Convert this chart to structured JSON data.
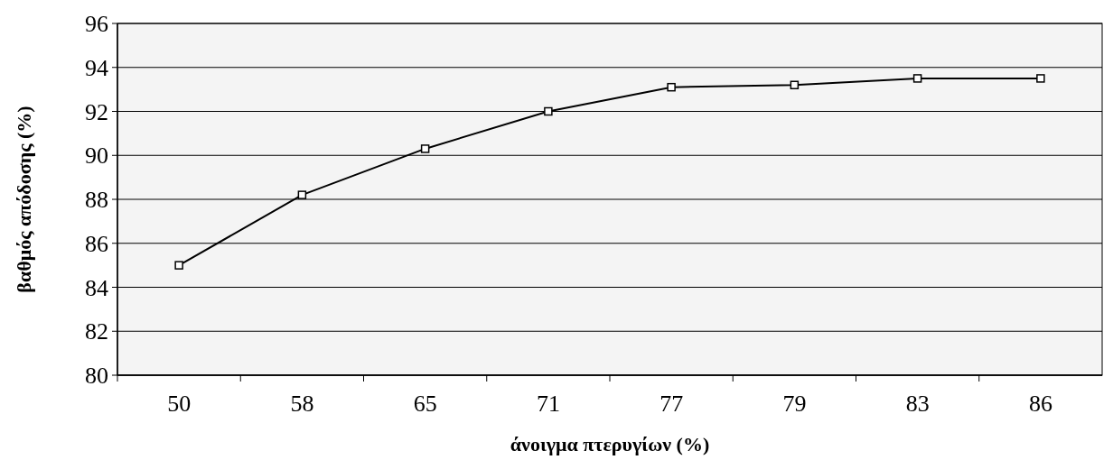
{
  "chart_data": {
    "type": "line",
    "xlabel": "άνοιγμα πτερυγίων (%)",
    "ylabel": "βαθμός απόδοσης (%)",
    "categories": [
      "50",
      "58",
      "65",
      "71",
      "77",
      "79",
      "83",
      "86"
    ],
    "series": [
      {
        "color": "#000000",
        "values": [
          85,
          88.2,
          90.3,
          92,
          93.1,
          93.2,
          93.5,
          93.5
        ]
      }
    ],
    "ylim": [
      80,
      96
    ],
    "yticks": [
      80,
      82,
      84,
      86,
      88,
      90,
      92,
      94,
      96
    ],
    "grid": "y",
    "marker": "square",
    "line_style": "solid"
  }
}
